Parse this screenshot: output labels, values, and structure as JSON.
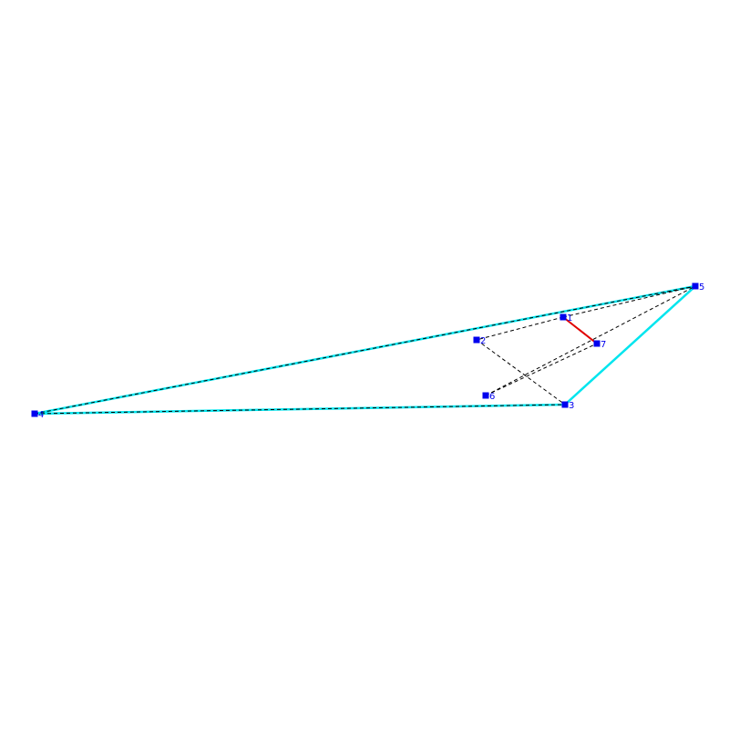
{
  "colors": {
    "background": "#ffffff",
    "hull_edge": "#00e5ee",
    "dashed_edge": "#000000",
    "highlight_edge": "#e00000",
    "vertex": "#0000ee",
    "label": "#0000ee"
  },
  "vertices": [
    {
      "id": "1",
      "label": "1"
    },
    {
      "id": "2",
      "label": "2"
    },
    {
      "id": "3",
      "label": "3"
    },
    {
      "id": "4",
      "label": "4"
    },
    {
      "id": "5",
      "label": "5"
    },
    {
      "id": "6",
      "label": "6"
    },
    {
      "id": "7",
      "label": "7"
    }
  ],
  "edges": {
    "hull": [
      [
        "4",
        "5"
      ],
      [
        "5",
        "3"
      ],
      [
        "3",
        "4"
      ]
    ],
    "dashed": [
      [
        "4",
        "5"
      ],
      [
        "4",
        "3"
      ],
      [
        "1",
        "5"
      ],
      [
        "1",
        "2"
      ],
      [
        "2",
        "3"
      ],
      [
        "6",
        "7"
      ],
      [
        "6",
        "5"
      ]
    ],
    "highlight": [
      [
        "1",
        "7"
      ]
    ]
  }
}
